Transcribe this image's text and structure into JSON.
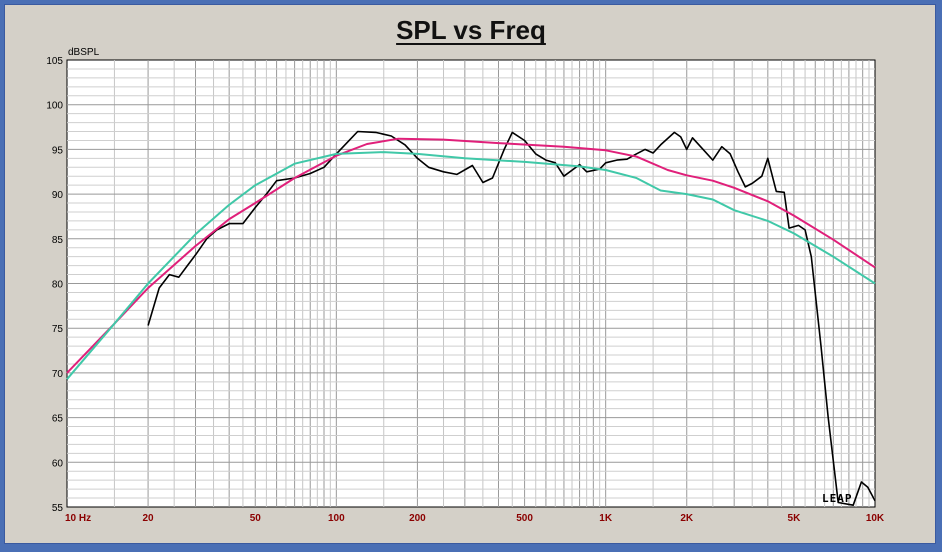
{
  "chart_data": {
    "type": "line",
    "title": "SPL vs Freq",
    "ylabel": "dBSPL",
    "xscale": "log",
    "xlim": [
      10,
      10000
    ],
    "ylim": [
      55,
      105
    ],
    "yticks": [
      105,
      100,
      95,
      90,
      85,
      80,
      75,
      70,
      65,
      60,
      55
    ],
    "xticks": [
      {
        "value": 10,
        "label": "10 Hz"
      },
      {
        "value": 20,
        "label": "20"
      },
      {
        "value": 50,
        "label": "50"
      },
      {
        "value": 100,
        "label": "100"
      },
      {
        "value": 200,
        "label": "200"
      },
      {
        "value": 500,
        "label": "500"
      },
      {
        "value": 1000,
        "label": "1K"
      },
      {
        "value": 2000,
        "label": "2K"
      },
      {
        "value": 5000,
        "label": "5K"
      },
      {
        "value": 10000,
        "label": "10K"
      }
    ],
    "grid": true,
    "logo": "LEAP",
    "series": [
      {
        "color": "#000000",
        "points": [
          [
            20,
            75.3
          ],
          [
            22,
            79.5
          ],
          [
            24,
            81.0
          ],
          [
            26,
            80.7
          ],
          [
            28,
            82.0
          ],
          [
            30,
            83.2
          ],
          [
            33,
            85.0
          ],
          [
            36,
            86.0
          ],
          [
            40,
            86.7
          ],
          [
            45,
            86.7
          ],
          [
            50,
            88.5
          ],
          [
            55,
            90.0
          ],
          [
            60,
            91.5
          ],
          [
            70,
            91.8
          ],
          [
            80,
            92.3
          ],
          [
            90,
            93.0
          ],
          [
            100,
            94.5
          ],
          [
            110,
            95.8
          ],
          [
            120,
            97.0
          ],
          [
            140,
            96.9
          ],
          [
            160,
            96.5
          ],
          [
            180,
            95.5
          ],
          [
            200,
            94.0
          ],
          [
            220,
            93.0
          ],
          [
            250,
            92.5
          ],
          [
            280,
            92.2
          ],
          [
            320,
            93.2
          ],
          [
            350,
            91.3
          ],
          [
            380,
            91.8
          ],
          [
            420,
            95.0
          ],
          [
            450,
            96.9
          ],
          [
            500,
            96.0
          ],
          [
            550,
            94.5
          ],
          [
            600,
            93.8
          ],
          [
            650,
            93.5
          ],
          [
            700,
            92.0
          ],
          [
            800,
            93.3
          ],
          [
            850,
            92.5
          ],
          [
            950,
            92.8
          ],
          [
            1000,
            93.5
          ],
          [
            1100,
            93.8
          ],
          [
            1200,
            93.9
          ],
          [
            1300,
            94.5
          ],
          [
            1400,
            95.0
          ],
          [
            1500,
            94.6
          ],
          [
            1600,
            95.5
          ],
          [
            1800,
            96.9
          ],
          [
            1900,
            96.4
          ],
          [
            2000,
            95.0
          ],
          [
            2100,
            96.3
          ],
          [
            2300,
            95.0
          ],
          [
            2500,
            93.8
          ],
          [
            2700,
            95.3
          ],
          [
            2900,
            94.5
          ],
          [
            3100,
            92.5
          ],
          [
            3300,
            90.8
          ],
          [
            3500,
            91.2
          ],
          [
            3800,
            92.0
          ],
          [
            4000,
            94.0
          ],
          [
            4300,
            90.3
          ],
          [
            4600,
            90.2
          ],
          [
            4800,
            86.2
          ],
          [
            5200,
            86.5
          ],
          [
            5500,
            86.0
          ],
          [
            5800,
            83.0
          ],
          [
            6300,
            73.0
          ],
          [
            6700,
            65.0
          ],
          [
            7300,
            55.5
          ],
          [
            8300,
            55.2
          ],
          [
            8900,
            57.8
          ],
          [
            9400,
            57.2
          ],
          [
            10000,
            55.7
          ]
        ]
      },
      {
        "color": "#e0207a",
        "points": [
          [
            10,
            70.0
          ],
          [
            15,
            75.5
          ],
          [
            20,
            79.5
          ],
          [
            30,
            84.2
          ],
          [
            40,
            87.2
          ],
          [
            50,
            89.0
          ],
          [
            70,
            91.8
          ],
          [
            100,
            94.3
          ],
          [
            130,
            95.6
          ],
          [
            170,
            96.2
          ],
          [
            250,
            96.1
          ],
          [
            400,
            95.7
          ],
          [
            700,
            95.3
          ],
          [
            1000,
            94.9
          ],
          [
            1300,
            94.2
          ],
          [
            1700,
            92.7
          ],
          [
            2000,
            92.1
          ],
          [
            2500,
            91.5
          ],
          [
            3000,
            90.7
          ],
          [
            4000,
            89.2
          ],
          [
            5000,
            87.6
          ],
          [
            7000,
            84.9
          ],
          [
            10000,
            81.8
          ]
        ]
      },
      {
        "color": "#40c8a8",
        "points": [
          [
            10,
            69.3
          ],
          [
            15,
            75.5
          ],
          [
            20,
            80.0
          ],
          [
            30,
            85.5
          ],
          [
            40,
            88.8
          ],
          [
            50,
            91.0
          ],
          [
            70,
            93.4
          ],
          [
            100,
            94.5
          ],
          [
            150,
            94.7
          ],
          [
            200,
            94.5
          ],
          [
            300,
            94.0
          ],
          [
            500,
            93.6
          ],
          [
            800,
            93.1
          ],
          [
            1000,
            92.7
          ],
          [
            1300,
            91.8
          ],
          [
            1600,
            90.4
          ],
          [
            2000,
            90.0
          ],
          [
            2500,
            89.4
          ],
          [
            3000,
            88.2
          ],
          [
            4000,
            87.0
          ],
          [
            5000,
            85.6
          ],
          [
            7000,
            83.0
          ],
          [
            10000,
            80.0
          ]
        ]
      }
    ]
  }
}
